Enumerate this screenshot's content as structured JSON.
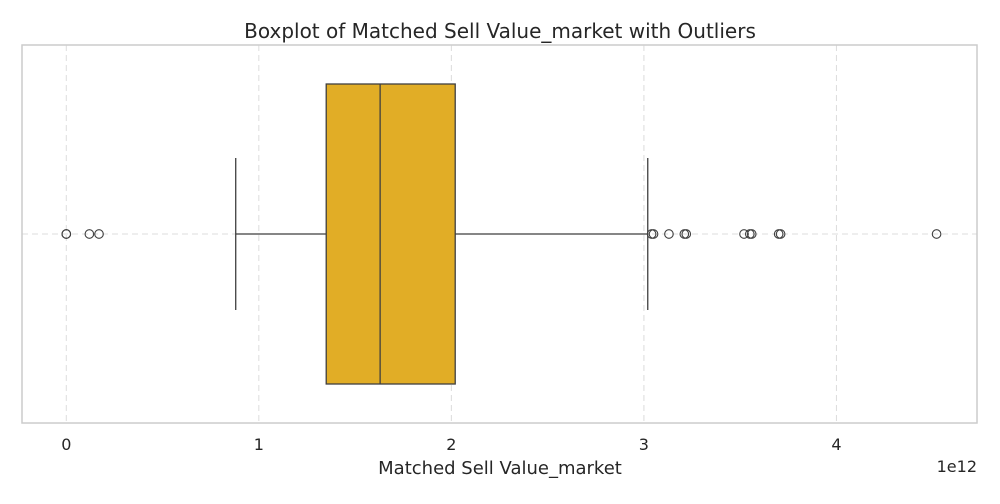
{
  "chart_data": {
    "type": "boxplot",
    "orientation": "horizontal",
    "title": "Boxplot of Matched Sell Value_market with Outliers",
    "xlabel": "Matched Sell Value_market",
    "ylabel": "",
    "scale_label": "1e12",
    "x_ticks": [
      0,
      1,
      2,
      3,
      4
    ],
    "x_tick_labels": [
      "0",
      "1",
      "2",
      "3",
      "4"
    ],
    "xlim": [
      -0.23,
      4.73
    ],
    "grid": true,
    "box": {
      "whisker_low": 0.88,
      "q1": 1.35,
      "median": 1.63,
      "q3": 2.02,
      "whisker_high": 3.02,
      "outliers": [
        0.0,
        0.0,
        0.12,
        0.17,
        3.04,
        3.05,
        3.13,
        3.21,
        3.22,
        3.52,
        3.55,
        3.56,
        3.7,
        3.71,
        4.52
      ]
    },
    "colors": {
      "box_fill": "#E1AD26",
      "box_edge": "#3f3f3f",
      "grid": "#dcdcdc",
      "frame": "#cccccc"
    }
  }
}
